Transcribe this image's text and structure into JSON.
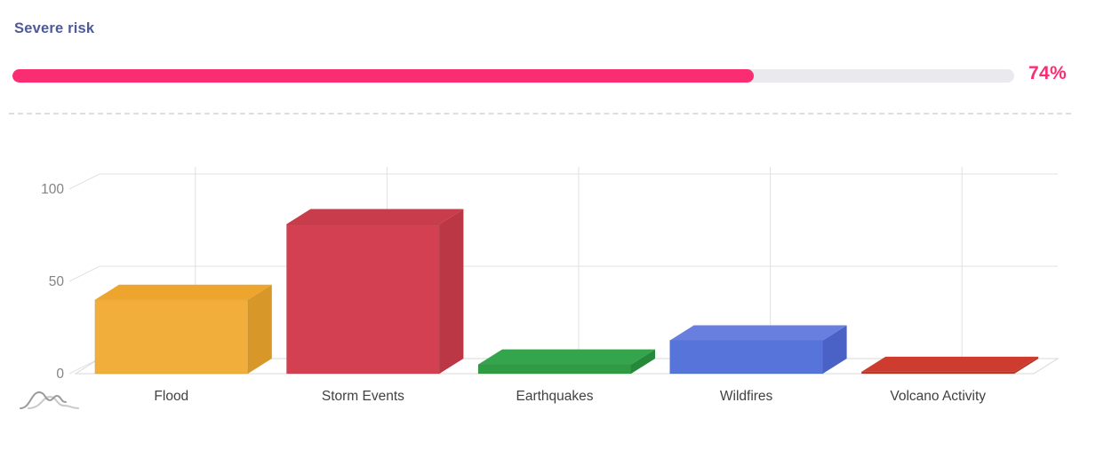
{
  "panel": {
    "title": "Severe risk",
    "title_color": "#4d5a97"
  },
  "progress": {
    "percent": 74,
    "label": "74%",
    "fill_color": "#fa2d72",
    "track_color": "#e9e9ee"
  },
  "chart_data": {
    "type": "bar",
    "variant": "3d-column",
    "title": "",
    "xlabel": "",
    "ylabel": "",
    "categories": [
      "Flood",
      "Storm Events",
      "Earthquakes",
      "Wildfires",
      "Volcano Activity"
    ],
    "values": [
      40,
      81,
      5,
      18,
      1
    ],
    "ylim": [
      0,
      100
    ],
    "yticks": [
      0,
      50,
      100
    ],
    "grid": true,
    "legend": "none",
    "bar_colors": [
      {
        "name": "Flood",
        "front": "#f1ae3b",
        "top": "#eda52e",
        "side": "#d79729"
      },
      {
        "name": "Storm Events",
        "front": "#d24051",
        "top": "#c93c4b",
        "side": "#bc3745"
      },
      {
        "name": "Earthquakes",
        "front": "#2f9c43",
        "top": "#35a54d",
        "side": "#26893a"
      },
      {
        "name": "Wildfires",
        "front": "#5674da",
        "top": "#687fe0",
        "side": "#4a61c6"
      },
      {
        "name": "Volcano Activity",
        "front": "#c2382b",
        "top": "#cd3c2f",
        "side": "#b33327"
      }
    ],
    "grid_color": "#e1e1e1",
    "floor_stroke_color": "#d8d8d8",
    "axis_tick_color": "#848484",
    "category_label_color": "#414141"
  },
  "icons": {
    "watermark": "wave-curves-logo"
  }
}
